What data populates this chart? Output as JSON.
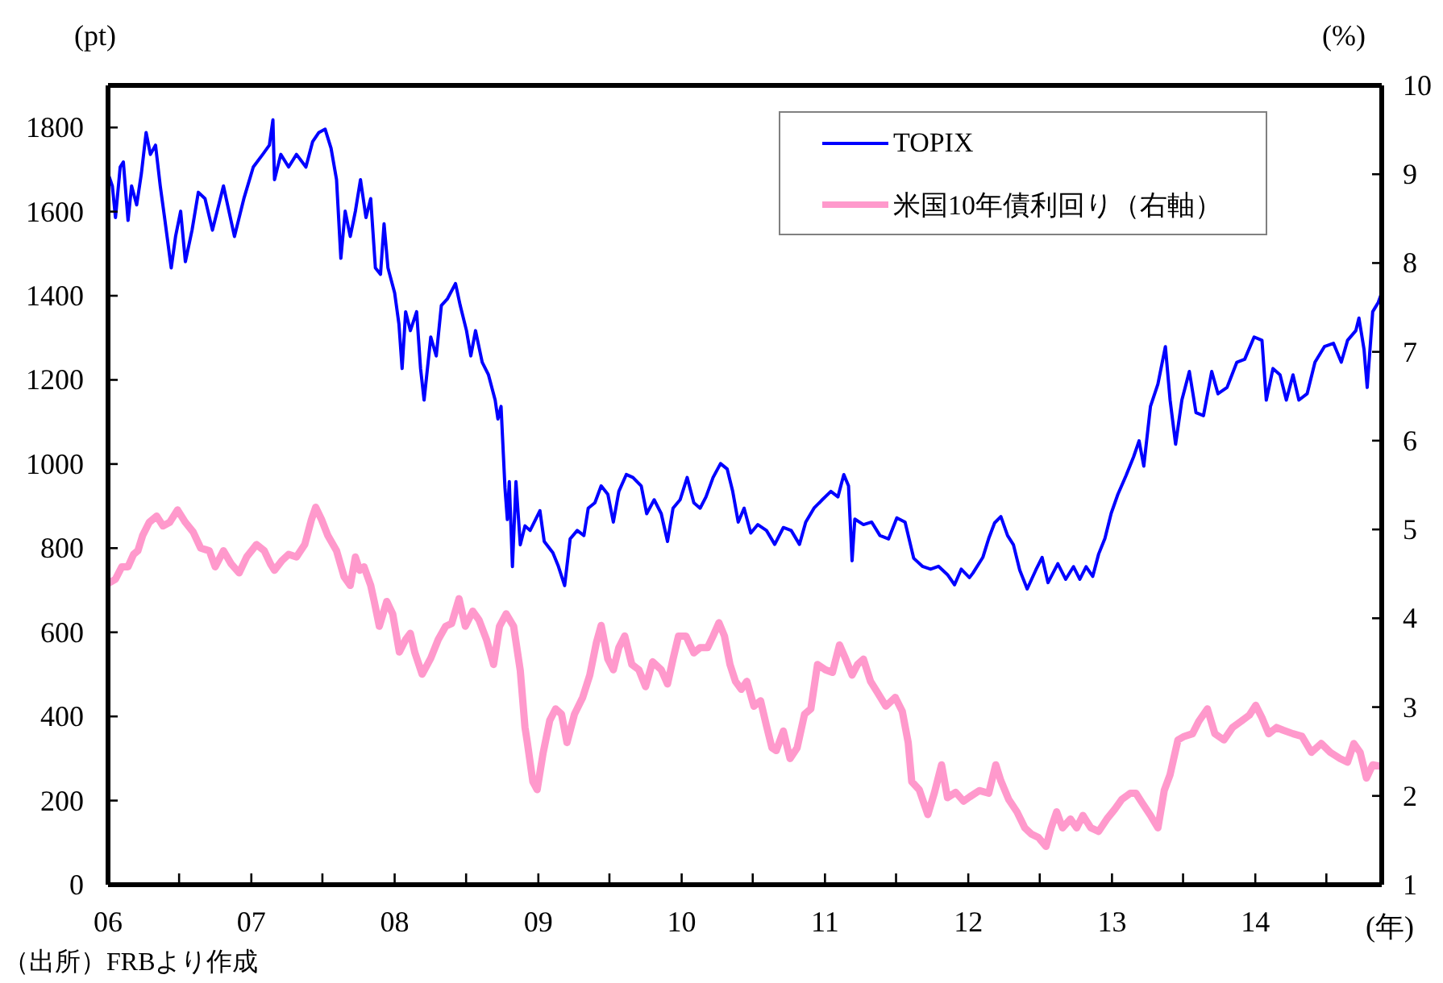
{
  "chart_data": {
    "type": "line",
    "xlabel": "(年)",
    "ylabel": "(pt)",
    "y2label": "(%)",
    "annotations": [
      "（出所）FRBより作成"
    ],
    "xlim": [
      "2006-01-01",
      "2014-11-19"
    ],
    "xticks": [
      {
        "value": "2006-01-01",
        "label": "06"
      },
      {
        "value": "2006-07-01",
        "label": null
      },
      {
        "value": "2007-01-01",
        "label": "07"
      },
      {
        "value": "2007-07-01",
        "label": null
      },
      {
        "value": "2008-01-01",
        "label": "08"
      },
      {
        "value": "2008-07-01",
        "label": null
      },
      {
        "value": "2009-01-01",
        "label": "09"
      },
      {
        "value": "2009-07-01",
        "label": null
      },
      {
        "value": "2010-01-01",
        "label": "10"
      },
      {
        "value": "2010-07-01",
        "label": null
      },
      {
        "value": "2011-01-01",
        "label": "11"
      },
      {
        "value": "2011-07-01",
        "label": null
      },
      {
        "value": "2012-01-01",
        "label": "12"
      },
      {
        "value": "2012-07-01",
        "label": null
      },
      {
        "value": "2013-01-01",
        "label": "13"
      },
      {
        "value": "2013-07-01",
        "label": null
      },
      {
        "value": "2014-01-01",
        "label": "14"
      },
      {
        "value": "2014-07-01",
        "label": null
      }
    ],
    "ylim": [
      0,
      1900
    ],
    "yticks": [
      0,
      200,
      400,
      600,
      800,
      1000,
      1200,
      1400,
      1600,
      1800
    ],
    "y2lim": [
      1,
      10
    ],
    "y2ticks": [
      1,
      2,
      3,
      4,
      5,
      6,
      7,
      8,
      9,
      10
    ],
    "legend": "top right",
    "series": [
      {
        "name": "TOPIX",
        "color": "#0000ff",
        "x": [
          "2006-01-04",
          "2006-01-12",
          "2006-01-20",
          "2006-02-01",
          "2006-02-09",
          "2006-02-21",
          "2006-03-02",
          "2006-03-15",
          "2006-03-27",
          "2006-04-08",
          "2006-04-19",
          "2006-05-02",
          "2006-05-14",
          "2006-05-25",
          "2006-06-11",
          "2006-06-22",
          "2006-07-05",
          "2006-07-17",
          "2006-08-03",
          "2006-08-19",
          "2006-09-05",
          "2006-09-24",
          "2006-10-22",
          "2006-11-19",
          "2006-12-13",
          "2007-01-06",
          "2007-01-30",
          "2007-02-16",
          "2007-02-25",
          "2007-03-01",
          "2007-03-17",
          "2007-04-06",
          "2007-04-26",
          "2007-05-20",
          "2007-06-06",
          "2007-06-22",
          "2007-07-08",
          "2007-07-23",
          "2007-08-06",
          "2007-08-17",
          "2007-08-28",
          "2007-09-10",
          "2007-09-23",
          "2007-10-06",
          "2007-10-20",
          "2007-11-01",
          "2007-11-13",
          "2007-11-26",
          "2007-12-05",
          "2007-12-15",
          "2008-01-01",
          "2008-01-12",
          "2008-01-20",
          "2008-01-29",
          "2008-02-10",
          "2008-02-26",
          "2008-03-07",
          "2008-03-16",
          "2008-04-02",
          "2008-04-16",
          "2008-04-29",
          "2008-05-14",
          "2008-06-04",
          "2008-06-16",
          "2008-07-02",
          "2008-07-13",
          "2008-07-25",
          "2008-08-11",
          "2008-08-27",
          "2008-09-13",
          "2008-09-20",
          "2008-09-28",
          "2008-10-08",
          "2008-10-14",
          "2008-10-19",
          "2008-10-27",
          "2008-11-05",
          "2008-11-16",
          "2008-11-28",
          "2008-12-11",
          "2009-01-05",
          "2009-01-16",
          "2009-02-07",
          "2009-02-21",
          "2009-03-09",
          "2009-03-23",
          "2009-04-10",
          "2009-04-27",
          "2009-05-08",
          "2009-05-25",
          "2009-06-10",
          "2009-06-27",
          "2009-07-11",
          "2009-07-25",
          "2009-08-13",
          "2009-08-30",
          "2009-09-20",
          "2009-10-04",
          "2009-10-23",
          "2009-11-10",
          "2009-11-26",
          "2009-12-10",
          "2009-12-28",
          "2010-01-15",
          "2010-02-01",
          "2010-02-17",
          "2010-03-04",
          "2010-03-22",
          "2010-04-10",
          "2010-04-27",
          "2010-05-11",
          "2010-05-25",
          "2010-06-09",
          "2010-06-26",
          "2010-07-14",
          "2010-08-05",
          "2010-08-26",
          "2010-09-17",
          "2010-10-07",
          "2010-10-28",
          "2010-11-13",
          "2010-12-04",
          "2010-12-25",
          "2011-01-16",
          "2011-02-03",
          "2011-02-18",
          "2011-03-02",
          "2011-03-11",
          "2011-03-18",
          "2011-04-09",
          "2011-04-30",
          "2011-05-21",
          "2011-06-12",
          "2011-07-03",
          "2011-07-24",
          "2011-08-15",
          "2011-09-06",
          "2011-09-27",
          "2011-10-17",
          "2011-11-09",
          "2011-11-27",
          "2011-12-14",
          "2012-01-04",
          "2012-01-13",
          "2012-02-07",
          "2012-02-22",
          "2012-03-08",
          "2012-03-24",
          "2012-04-10",
          "2012-04-25",
          "2012-05-11",
          "2012-05-30",
          "2012-06-21",
          "2012-07-07",
          "2012-07-22",
          "2012-08-16",
          "2012-09-05",
          "2012-09-25",
          "2012-10-11",
          "2012-10-27",
          "2012-11-13",
          "2012-11-28",
          "2012-12-14",
          "2012-12-30",
          "2013-01-16",
          "2013-02-06",
          "2013-02-25",
          "2013-03-11",
          "2013-03-23",
          "2013-04-09",
          "2013-04-28",
          "2013-05-17",
          "2013-05-29",
          "2013-06-12",
          "2013-06-28",
          "2013-07-17",
          "2013-08-03",
          "2013-08-22",
          "2013-09-12",
          "2013-09-28",
          "2013-10-21",
          "2013-11-15",
          "2013-12-05",
          "2013-12-29",
          "2014-01-18",
          "2014-01-29",
          "2014-02-15",
          "2014-03-05",
          "2014-03-21",
          "2014-04-07",
          "2014-04-22",
          "2014-05-13",
          "2014-06-02",
          "2014-06-26",
          "2014-07-19",
          "2014-08-08",
          "2014-08-24",
          "2014-09-14",
          "2014-09-22",
          "2014-10-05",
          "2014-10-13",
          "2014-10-27",
          "2014-11-10",
          "2014-11-19"
        ],
        "values": [
          1683,
          1661,
          1586,
          1706,
          1718,
          1579,
          1661,
          1616,
          1691,
          1788,
          1736,
          1758,
          1661,
          1586,
          1466,
          1541,
          1601,
          1481,
          1556,
          1646,
          1631,
          1556,
          1661,
          1541,
          1631,
          1706,
          1736,
          1758,
          1818,
          1676,
          1736,
          1706,
          1736,
          1706,
          1766,
          1788,
          1796,
          1751,
          1676,
          1489,
          1601,
          1541,
          1601,
          1676,
          1586,
          1631,
          1466,
          1451,
          1571,
          1466,
          1407,
          1332,
          1227,
          1362,
          1317,
          1362,
          1227,
          1152,
          1302,
          1257,
          1377,
          1392,
          1429,
          1377,
          1317,
          1257,
          1317,
          1242,
          1212,
          1152,
          1107,
          1137,
          943,
          868,
          958,
          756,
          958,
          808,
          853,
          842,
          889,
          816,
          789,
          757,
          711,
          822,
          842,
          830,
          895,
          908,
          948,
          928,
          862,
          935,
          975,
          968,
          948,
          882,
          915,
          882,
          816,
          895,
          915,
          968,
          908,
          895,
          922,
          968,
          1001,
          988,
          935,
          862,
          895,
          836,
          856,
          842,
          809,
          849,
          842,
          809,
          862,
          895,
          915,
          935,
          922,
          975,
          948,
          770,
          869,
          856,
          862,
          830,
          822,
          872,
          862,
          776,
          757,
          750,
          757,
          737,
          713,
          750,
          730,
          741,
          778,
          823,
          860,
          875,
          830,
          808,
          748,
          703,
          748,
          778,
          718,
          763,
          726,
          756,
          726,
          756,
          733,
          786,
          823,
          883,
          928,
          973,
          1017,
          1055,
          995,
          1137,
          1190,
          1279,
          1152,
          1047,
          1152,
          1220,
          1122,
          1115,
          1220,
          1167,
          1182,
          1242,
          1249,
          1302,
          1294,
          1152,
          1227,
          1212,
          1152,
          1212,
          1152,
          1167,
          1242,
          1279,
          1287,
          1242,
          1294,
          1317,
          1347,
          1272,
          1182,
          1362,
          1384,
          1407
        ]
      },
      {
        "name": "米国10年債利回り（右軸）",
        "color": "#ff99cc",
        "axis": "y2",
        "x": [
          "2006-01-04",
          "2006-01-20",
          "2006-02-05",
          "2006-02-21",
          "2006-03-07",
          "2006-03-18",
          "2006-03-30",
          "2006-04-16",
          "2006-05-05",
          "2006-05-21",
          "2006-06-07",
          "2006-06-27",
          "2006-07-17",
          "2006-08-06",
          "2006-08-25",
          "2006-09-16",
          "2006-10-01",
          "2006-10-22",
          "2006-11-11",
          "2006-12-01",
          "2006-12-20",
          "2007-01-14",
          "2007-02-03",
          "2007-02-19",
          "2007-03-01",
          "2007-03-20",
          "2007-04-06",
          "2007-04-26",
          "2007-05-17",
          "2007-06-03",
          "2007-06-14",
          "2007-06-29",
          "2007-07-15",
          "2007-08-06",
          "2007-08-25",
          "2007-09-10",
          "2007-09-23",
          "2007-10-04",
          "2007-10-15",
          "2007-11-01",
          "2007-11-10",
          "2007-11-23",
          "2007-12-12",
          "2007-12-27",
          "2008-01-13",
          "2008-01-29",
          "2008-02-10",
          "2008-02-21",
          "2008-03-11",
          "2008-04-02",
          "2008-04-21",
          "2008-05-10",
          "2008-05-25",
          "2008-06-13",
          "2008-06-29",
          "2008-07-18",
          "2008-08-03",
          "2008-08-22",
          "2008-09-09",
          "2008-09-24",
          "2008-10-11",
          "2008-10-30",
          "2008-11-16",
          "2008-11-28",
          "2008-12-04",
          "2008-12-18",
          "2008-12-29",
          "2009-01-13",
          "2009-01-30",
          "2009-02-14",
          "2009-03-01",
          "2009-03-15",
          "2009-04-03",
          "2009-04-24",
          "2009-05-12",
          "2009-05-29",
          "2009-06-10",
          "2009-06-27",
          "2009-07-11",
          "2009-07-25",
          "2009-08-09",
          "2009-08-27",
          "2009-09-14",
          "2009-10-01",
          "2009-10-19",
          "2009-11-10",
          "2009-11-26",
          "2009-12-10",
          "2009-12-24",
          "2010-01-12",
          "2010-02-01",
          "2010-02-17",
          "2010-03-08",
          "2010-03-22",
          "2010-04-06",
          "2010-04-20",
          "2010-05-04",
          "2010-05-18",
          "2010-06-02",
          "2010-06-16",
          "2010-07-04",
          "2010-07-21",
          "2010-08-05",
          "2010-08-19",
          "2010-08-30",
          "2010-09-17",
          "2010-10-04",
          "2010-10-22",
          "2010-11-10",
          "2010-11-26",
          "2010-12-13",
          "2011-01-02",
          "2011-01-20",
          "2011-02-07",
          "2011-02-23",
          "2011-03-11",
          "2011-03-25",
          "2011-04-09",
          "2011-04-27",
          "2011-05-14",
          "2011-06-05",
          "2011-06-29",
          "2011-07-17",
          "2011-08-01",
          "2011-08-10",
          "2011-08-29",
          "2011-09-20",
          "2011-10-07",
          "2011-10-25",
          "2011-11-09",
          "2011-11-30",
          "2011-12-20",
          "2012-01-05",
          "2012-01-29",
          "2012-02-22",
          "2012-03-11",
          "2012-03-24",
          "2012-04-13",
          "2012-05-04",
          "2012-05-24",
          "2012-06-10",
          "2012-06-28",
          "2012-07-17",
          "2012-07-30",
          "2012-08-13",
          "2012-08-28",
          "2012-09-17",
          "2012-10-03",
          "2012-10-19",
          "2012-11-08",
          "2012-11-28",
          "2012-12-19",
          "2013-01-08",
          "2013-01-26",
          "2013-02-17",
          "2013-03-03",
          "2013-03-19",
          "2013-04-09",
          "2013-04-28",
          "2013-05-14",
          "2013-05-29",
          "2013-06-18",
          "2013-07-04",
          "2013-07-25",
          "2013-08-10",
          "2013-09-01",
          "2013-09-20",
          "2013-10-13",
          "2013-11-04",
          "2013-11-26",
          "2013-12-17",
          "2014-01-02",
          "2014-01-18",
          "2014-02-04",
          "2014-02-24",
          "2014-03-13",
          "2014-04-07",
          "2014-04-30",
          "2014-05-24",
          "2014-06-18",
          "2014-07-11",
          "2014-08-05",
          "2014-08-24",
          "2014-09-09",
          "2014-09-25",
          "2014-10-11",
          "2014-10-27",
          "2014-11-19"
        ],
        "values": [
          4.4,
          4.44,
          4.58,
          4.58,
          4.72,
          4.76,
          4.93,
          5.08,
          5.15,
          5.04,
          5.08,
          5.22,
          5.08,
          4.97,
          4.79,
          4.76,
          4.58,
          4.76,
          4.61,
          4.51,
          4.69,
          4.83,
          4.76,
          4.61,
          4.54,
          4.65,
          4.72,
          4.69,
          4.83,
          5.11,
          5.25,
          5.11,
          4.93,
          4.76,
          4.47,
          4.37,
          4.69,
          4.54,
          4.58,
          4.37,
          4.19,
          3.91,
          4.19,
          4.05,
          3.62,
          3.76,
          3.83,
          3.62,
          3.37,
          3.55,
          3.76,
          3.91,
          3.94,
          4.22,
          3.91,
          4.08,
          3.98,
          3.76,
          3.48,
          3.91,
          4.05,
          3.91,
          3.41,
          2.77,
          2.6,
          2.16,
          2.07,
          2.48,
          2.85,
          2.98,
          2.92,
          2.6,
          2.92,
          3.11,
          3.36,
          3.73,
          3.92,
          3.54,
          3.42,
          3.67,
          3.8,
          3.48,
          3.42,
          3.23,
          3.51,
          3.42,
          3.26,
          3.54,
          3.8,
          3.8,
          3.61,
          3.67,
          3.67,
          3.8,
          3.95,
          3.8,
          3.48,
          3.29,
          3.2,
          3.29,
          3.01,
          3.07,
          2.79,
          2.54,
          2.51,
          2.73,
          2.42,
          2.54,
          2.92,
          2.98,
          3.48,
          3.42,
          3.39,
          3.7,
          3.54,
          3.36,
          3.48,
          3.54,
          3.29,
          3.17,
          3.01,
          3.11,
          2.95,
          2.6,
          2.16,
          2.07,
          1.79,
          2.04,
          2.35,
          1.98,
          2.04,
          1.94,
          1.99,
          2.06,
          2.03,
          2.35,
          2.17,
          1.96,
          1.82,
          1.64,
          1.57,
          1.53,
          1.43,
          1.64,
          1.82,
          1.64,
          1.74,
          1.64,
          1.78,
          1.64,
          1.6,
          1.74,
          1.85,
          1.96,
          2.03,
          2.03,
          1.92,
          1.78,
          1.64,
          2.06,
          2.24,
          2.63,
          2.67,
          2.7,
          2.84,
          2.98,
          2.7,
          2.63,
          2.77,
          2.84,
          2.91,
          3.02,
          2.88,
          2.7,
          2.77,
          2.74,
          2.7,
          2.67,
          2.49,
          2.59,
          2.49,
          2.42,
          2.38,
          2.59,
          2.49,
          2.2,
          2.35,
          2.33
        ]
      }
    ]
  }
}
